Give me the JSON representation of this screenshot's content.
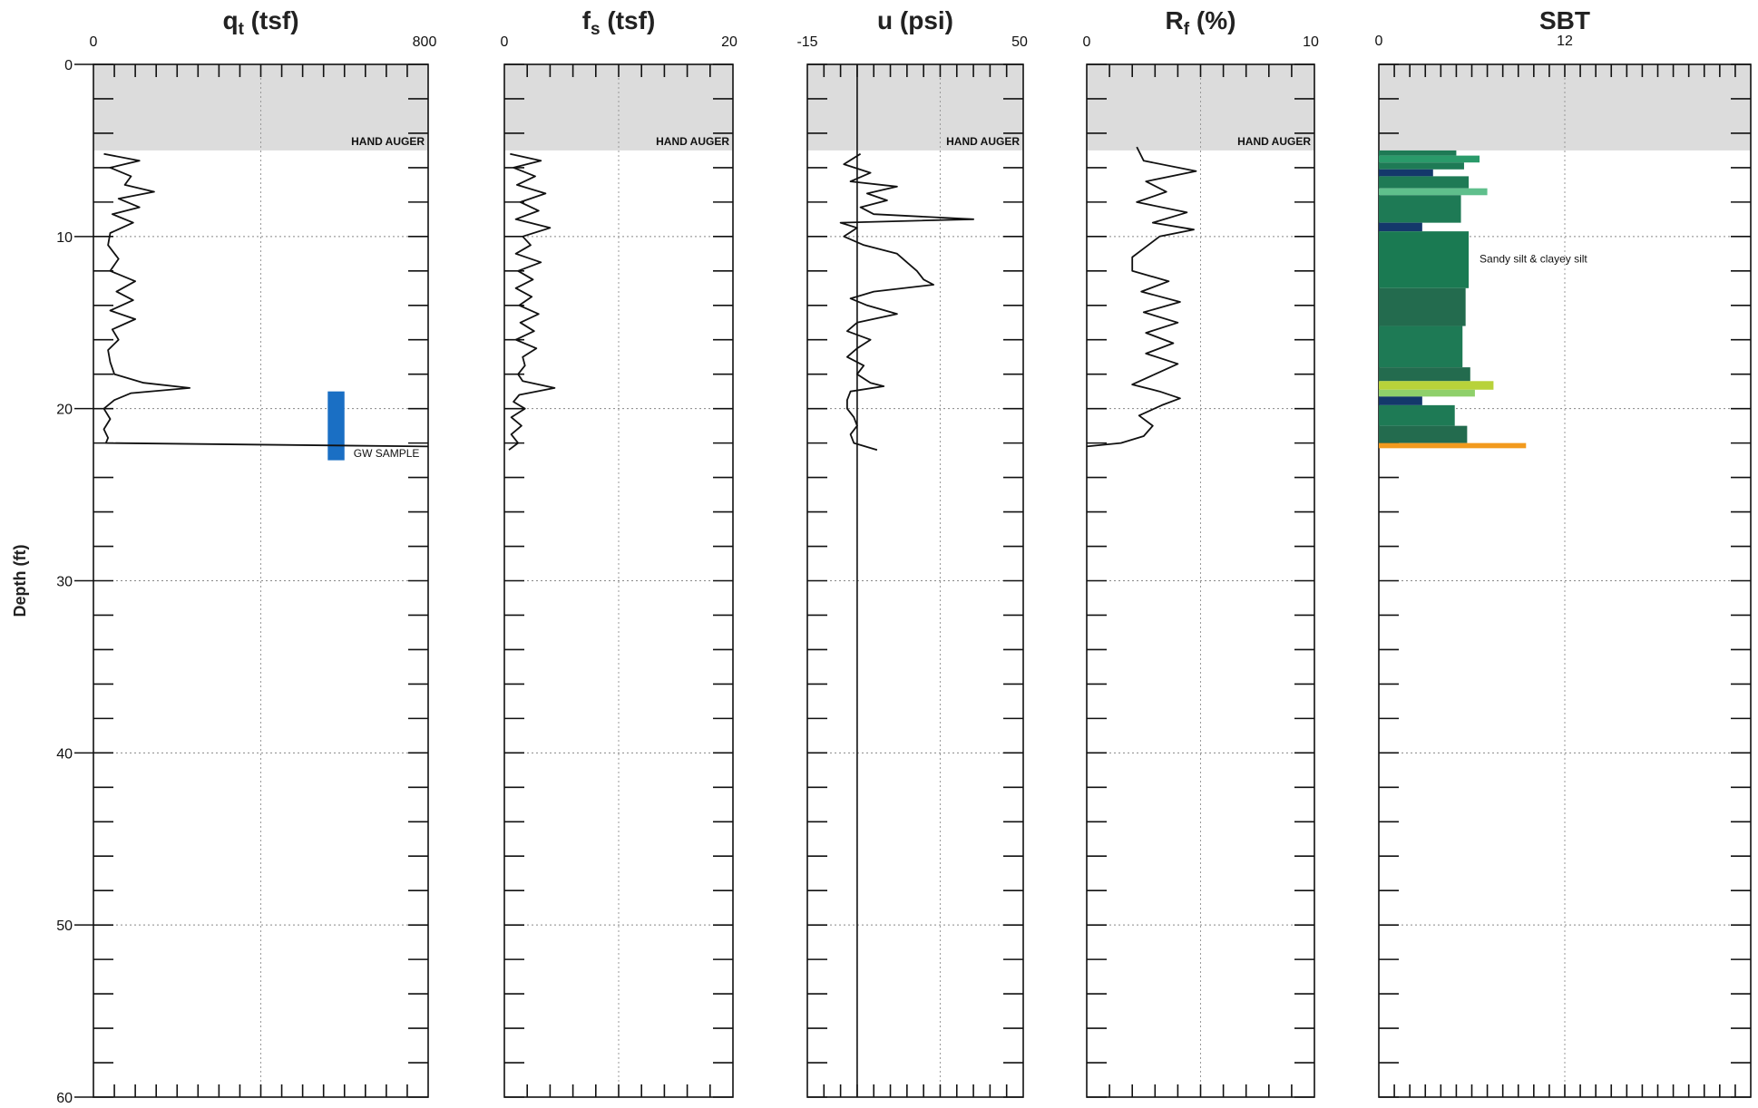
{
  "chart_data": {
    "type": "line",
    "depth_axis": {
      "label": "Depth (ft)",
      "range": [
        0,
        60
      ],
      "ticks": [
        0,
        10,
        20,
        30,
        40,
        50,
        60
      ]
    },
    "hand_auger": {
      "label": "HAND AUGER",
      "top": 0,
      "bottom": 5,
      "fill_color": "#d6d6d6"
    },
    "panels": [
      {
        "id": "qt",
        "title_main": "q",
        "title_sub": "t",
        "title_rest": " (tsf)",
        "xlim": [
          0,
          800
        ],
        "xticks": [
          "0",
          "800"
        ],
        "vgrid": [
          400
        ],
        "minor_ticks": 16,
        "series": [
          {
            "depth": [
              5.2,
              5.6,
              6.0,
              6.5,
              7.0,
              7.4,
              7.8,
              8.3,
              8.7,
              9.2,
              9.8,
              10.5,
              11.3,
              12.0,
              12.6,
              13.2,
              13.7,
              14.3,
              14.8,
              15.4,
              16.0,
              16.6,
              17.3,
              18.0,
              18.5,
              18.8,
              19.1,
              19.5,
              20.0,
              20.6,
              21.2,
              21.7,
              22.0,
              22.2
            ],
            "value": [
              25,
              110,
              40,
              90,
              75,
              145,
              60,
              110,
              45,
              95,
              40,
              35,
              60,
              40,
              100,
              55,
              95,
              40,
              100,
              45,
              60,
              35,
              40,
              50,
              120,
              230,
              90,
              50,
              25,
              40,
              25,
              35,
              30,
              800
            ]
          }
        ],
        "sample": {
          "label": "GW SAMPLE",
          "top": 19.0,
          "bottom": 23.0,
          "x_range": [
            560,
            600
          ],
          "color": "#1a6fc4"
        }
      },
      {
        "id": "fs",
        "title_main": "f",
        "title_sub": "s",
        "title_rest": " (tsf)",
        "xlim": [
          0,
          20
        ],
        "xticks": [
          "0",
          "20"
        ],
        "vgrid": [
          10
        ],
        "minor_ticks": 10,
        "series": [
          {
            "depth": [
              5.2,
              5.6,
              6.0,
              6.5,
              7.0,
              7.5,
              8.0,
              8.5,
              9.0,
              9.5,
              10.0,
              10.5,
              11.0,
              11.5,
              12.0,
              12.5,
              13.0,
              13.5,
              14.0,
              14.5,
              15.0,
              15.5,
              16.0,
              16.5,
              17.0,
              17.5,
              18.0,
              18.4,
              18.8,
              19.2,
              19.6,
              20.0,
              20.5,
              21.0,
              21.5,
              22.0,
              22.4
            ],
            "value": [
              0.5,
              3.2,
              0.8,
              2.7,
              1.1,
              3.6,
              1.4,
              3.0,
              1.0,
              4.0,
              1.6,
              2.3,
              1.0,
              3.2,
              1.2,
              2.5,
              1.0,
              2.4,
              1.3,
              3.0,
              1.4,
              2.6,
              1.0,
              2.8,
              1.6,
              1.8,
              1.2,
              1.6,
              4.4,
              1.3,
              0.8,
              1.8,
              0.6,
              1.5,
              0.6,
              1.2,
              0.4
            ]
          }
        ]
      },
      {
        "id": "u",
        "title_main": "u",
        "title_sub": "",
        "title_rest": " (psi)",
        "xlim": [
          -15,
          50
        ],
        "xticks": [
          "-15",
          "50"
        ],
        "vgrid": [
          0,
          25
        ],
        "zero_line": 0,
        "minor_ticks": 13,
        "series": [
          {
            "depth": [
              5.2,
              5.8,
              6.3,
              6.8,
              7.1,
              7.5,
              7.9,
              8.3,
              8.7,
              9.0,
              9.2,
              9.5,
              10.0,
              10.5,
              11.0,
              11.5,
              12.0,
              12.5,
              12.8,
              13.2,
              13.6,
              14.0,
              14.5,
              15.0,
              15.5,
              16.0,
              16.5,
              17.0,
              17.5,
              18.0,
              18.5,
              18.7,
              19.0,
              19.5,
              20.0,
              20.5,
              21.0,
              21.5,
              22.0,
              22.4
            ],
            "value": [
              1,
              -4,
              4,
              -2,
              12,
              3,
              9,
              1,
              5,
              35,
              -5,
              0,
              -4,
              2,
              12,
              15,
              18,
              20,
              23,
              5,
              -2,
              3,
              12,
              0,
              -3,
              4,
              0,
              -3,
              2,
              0,
              4,
              8,
              -2,
              -3,
              -3,
              -1,
              0,
              -2,
              -1,
              6
            ]
          }
        ]
      },
      {
        "id": "rf",
        "title_main": "R",
        "title_sub": "f",
        "title_rest": " (%)",
        "xlim": [
          0,
          10
        ],
        "xticks": [
          "0",
          "10"
        ],
        "vgrid": [
          5
        ],
        "minor_ticks": 10,
        "series": [
          {
            "depth": [
              4.8,
              5.6,
              6.2,
              6.8,
              7.4,
              8.0,
              8.6,
              9.2,
              9.6,
              10.0,
              10.6,
              11.2,
              12.0,
              12.6,
              13.2,
              13.8,
              14.4,
              15.0,
              15.6,
              16.2,
              16.8,
              17.4,
              18.0,
              18.6,
              19.0,
              19.4,
              19.8,
              20.4,
              21.0,
              21.6,
              22.0,
              22.2
            ],
            "value": [
              2.2,
              2.5,
              4.8,
              2.6,
              3.5,
              2.2,
              4.4,
              2.9,
              4.7,
              3.2,
              2.6,
              2.0,
              2.0,
              3.6,
              2.4,
              4.1,
              2.5,
              4.0,
              2.6,
              3.8,
              2.6,
              4.0,
              3.0,
              2.0,
              3.2,
              4.1,
              3.3,
              2.3,
              2.9,
              2.5,
              1.5,
              0
            ]
          }
        ]
      },
      {
        "id": "sbt",
        "title_main": "SBT",
        "title_sub": "",
        "title_rest": "",
        "xlim": [
          0,
          24
        ],
        "xticks": [
          "0",
          "12"
        ],
        "vgrid": [
          12
        ],
        "minor_ticks": 24,
        "label": "Sandy silt & clayey silt",
        "label_depth": 11.3,
        "bars": [
          {
            "top": 5.0,
            "bottom": 5.3,
            "value": 5,
            "color": "#1e7a55"
          },
          {
            "top": 5.3,
            "bottom": 5.7,
            "value": 6.5,
            "color": "#2a9a6a"
          },
          {
            "top": 5.7,
            "bottom": 6.1,
            "value": 5.5,
            "color": "#1e7a55"
          },
          {
            "top": 6.1,
            "bottom": 6.5,
            "value": 3.5,
            "color": "#14386b"
          },
          {
            "top": 6.5,
            "bottom": 7.2,
            "value": 5.8,
            "color": "#1e7a55"
          },
          {
            "top": 7.2,
            "bottom": 7.6,
            "value": 7,
            "color": "#5fbf8c"
          },
          {
            "top": 7.6,
            "bottom": 9.2,
            "value": 5.3,
            "color": "#1e7a55"
          },
          {
            "top": 9.2,
            "bottom": 9.7,
            "value": 2.8,
            "color": "#14386b"
          },
          {
            "top": 9.7,
            "bottom": 13.0,
            "value": 5.8,
            "color": "#1a7a52"
          },
          {
            "top": 13.0,
            "bottom": 15.2,
            "value": 5.6,
            "color": "#236b4e"
          },
          {
            "top": 15.2,
            "bottom": 17.6,
            "value": 5.4,
            "color": "#1e7a55"
          },
          {
            "top": 17.6,
            "bottom": 18.4,
            "value": 5.9,
            "color": "#236b4e"
          },
          {
            "top": 18.4,
            "bottom": 18.9,
            "value": 7.4,
            "color": "#b8d23a"
          },
          {
            "top": 18.9,
            "bottom": 19.3,
            "value": 6.2,
            "color": "#8fd06a"
          },
          {
            "top": 19.3,
            "bottom": 19.8,
            "value": 2.8,
            "color": "#14386b"
          },
          {
            "top": 19.8,
            "bottom": 21.0,
            "value": 4.9,
            "color": "#1e7a55"
          },
          {
            "top": 21.0,
            "bottom": 22.0,
            "value": 5.7,
            "color": "#236b4e"
          },
          {
            "top": 22.0,
            "bottom": 22.3,
            "value": 9.5,
            "color": "#f29a1e"
          }
        ]
      }
    ]
  }
}
